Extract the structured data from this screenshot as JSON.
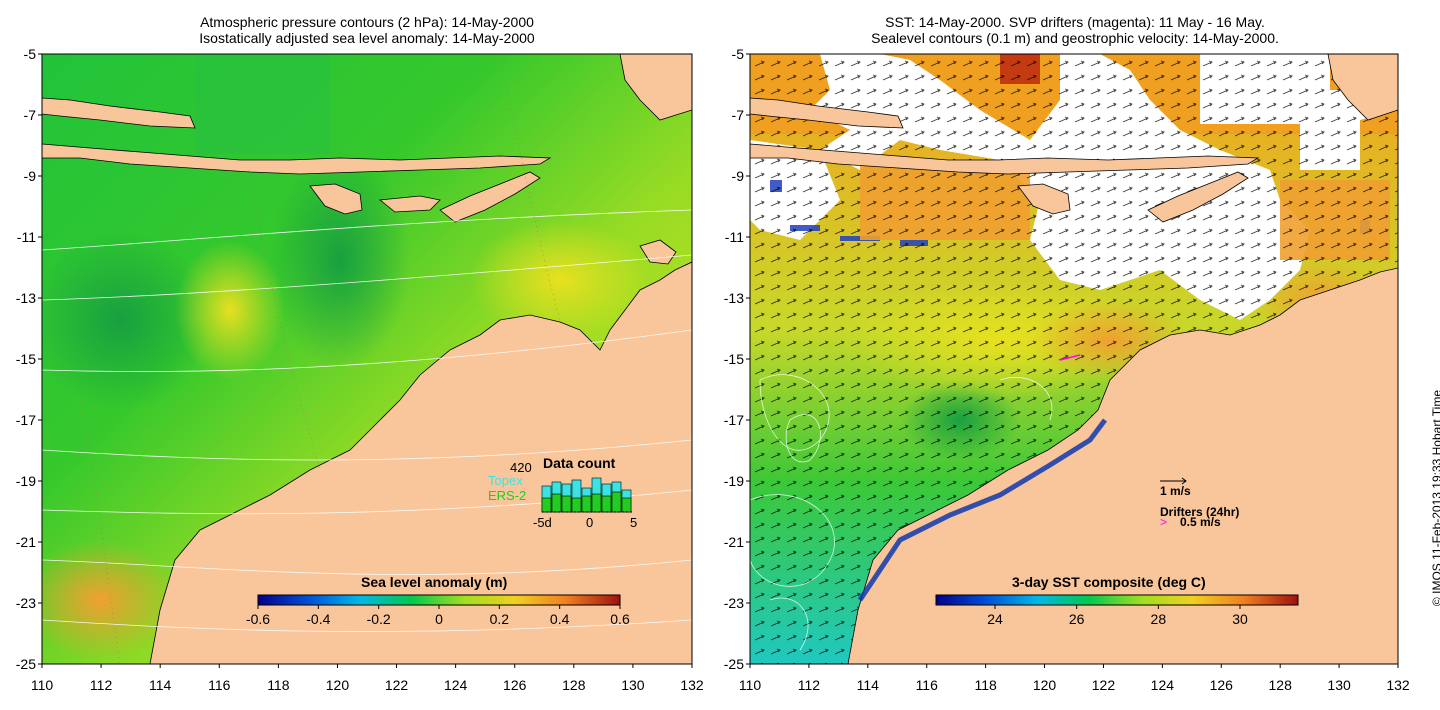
{
  "left_panel": {
    "title_line1": "Atmospheric pressure contours (2 hPa): 14-May-2000",
    "title_line2": "Isostatically adjusted sea level anomaly: 14-May-2000",
    "colorbar_label": "Sea level anomaly (m)",
    "colorbar_ticks": [
      "-0.6",
      "-0.4",
      "-0.2",
      "0",
      "0.2",
      "0.4",
      "0.6"
    ],
    "colorbar_colors": [
      "#00008b",
      "#0060e0",
      "#00c0e0",
      "#00d020",
      "#c0e020",
      "#f0b020",
      "#e06010",
      "#a01010"
    ],
    "data_count": {
      "title": "Data count",
      "count": "420",
      "sat1": "Topex",
      "sat1_color": "#3de3e3",
      "sat2": "ERS-2",
      "sat2_color": "#22cc22",
      "axis_labels": [
        "-5d",
        "0",
        "5"
      ],
      "bars": [
        {
          "topex": 0.65,
          "ers": 0.35
        },
        {
          "topex": 0.75,
          "ers": 0.45
        },
        {
          "topex": 0.7,
          "ers": 0.4
        },
        {
          "topex": 0.8,
          "ers": 0.35
        },
        {
          "topex": 0.6,
          "ers": 0.4
        },
        {
          "topex": 0.85,
          "ers": 0.45
        },
        {
          "topex": 0.7,
          "ers": 0.4
        },
        {
          "topex": 0.75,
          "ers": 0.5
        },
        {
          "topex": 0.55,
          "ers": 0.35
        }
      ]
    }
  },
  "right_panel": {
    "title_line1": "SST: 14-May-2000. SVP drifters (magenta): 11 May - 16 May.",
    "title_line2": "Sealevel contours (0.1 m) and geostrophic velocity: 14-May-2000.",
    "colorbar_label": "3-day SST composite (deg C)",
    "colorbar_ticks": [
      "24",
      "26",
      "28",
      "30"
    ],
    "colorbar_colors": [
      "#00008b",
      "#0060e0",
      "#00c0e0",
      "#00d020",
      "#c0e020",
      "#f0b020",
      "#e06010",
      "#a01010"
    ],
    "scale_label": "1 m/s",
    "drifters_label": "Drifters (24hr)",
    "drifters_scale": "0.5 m/s",
    "drifter_color": "#ff00ff"
  },
  "axes": {
    "lon_ticks": [
      "110",
      "112",
      "114",
      "116",
      "118",
      "120",
      "122",
      "124",
      "126",
      "128",
      "130",
      "132"
    ],
    "lat_ticks": [
      "-5",
      "-7",
      "-9",
      "-11",
      "-13",
      "-15",
      "-17",
      "-19",
      "-21",
      "-23",
      "-25"
    ]
  },
  "credit": "© IMOS 11-Feb-2013 19:33 Hobart Time",
  "colors": {
    "land": "#f9c59a",
    "cloud": "#ffffff"
  }
}
